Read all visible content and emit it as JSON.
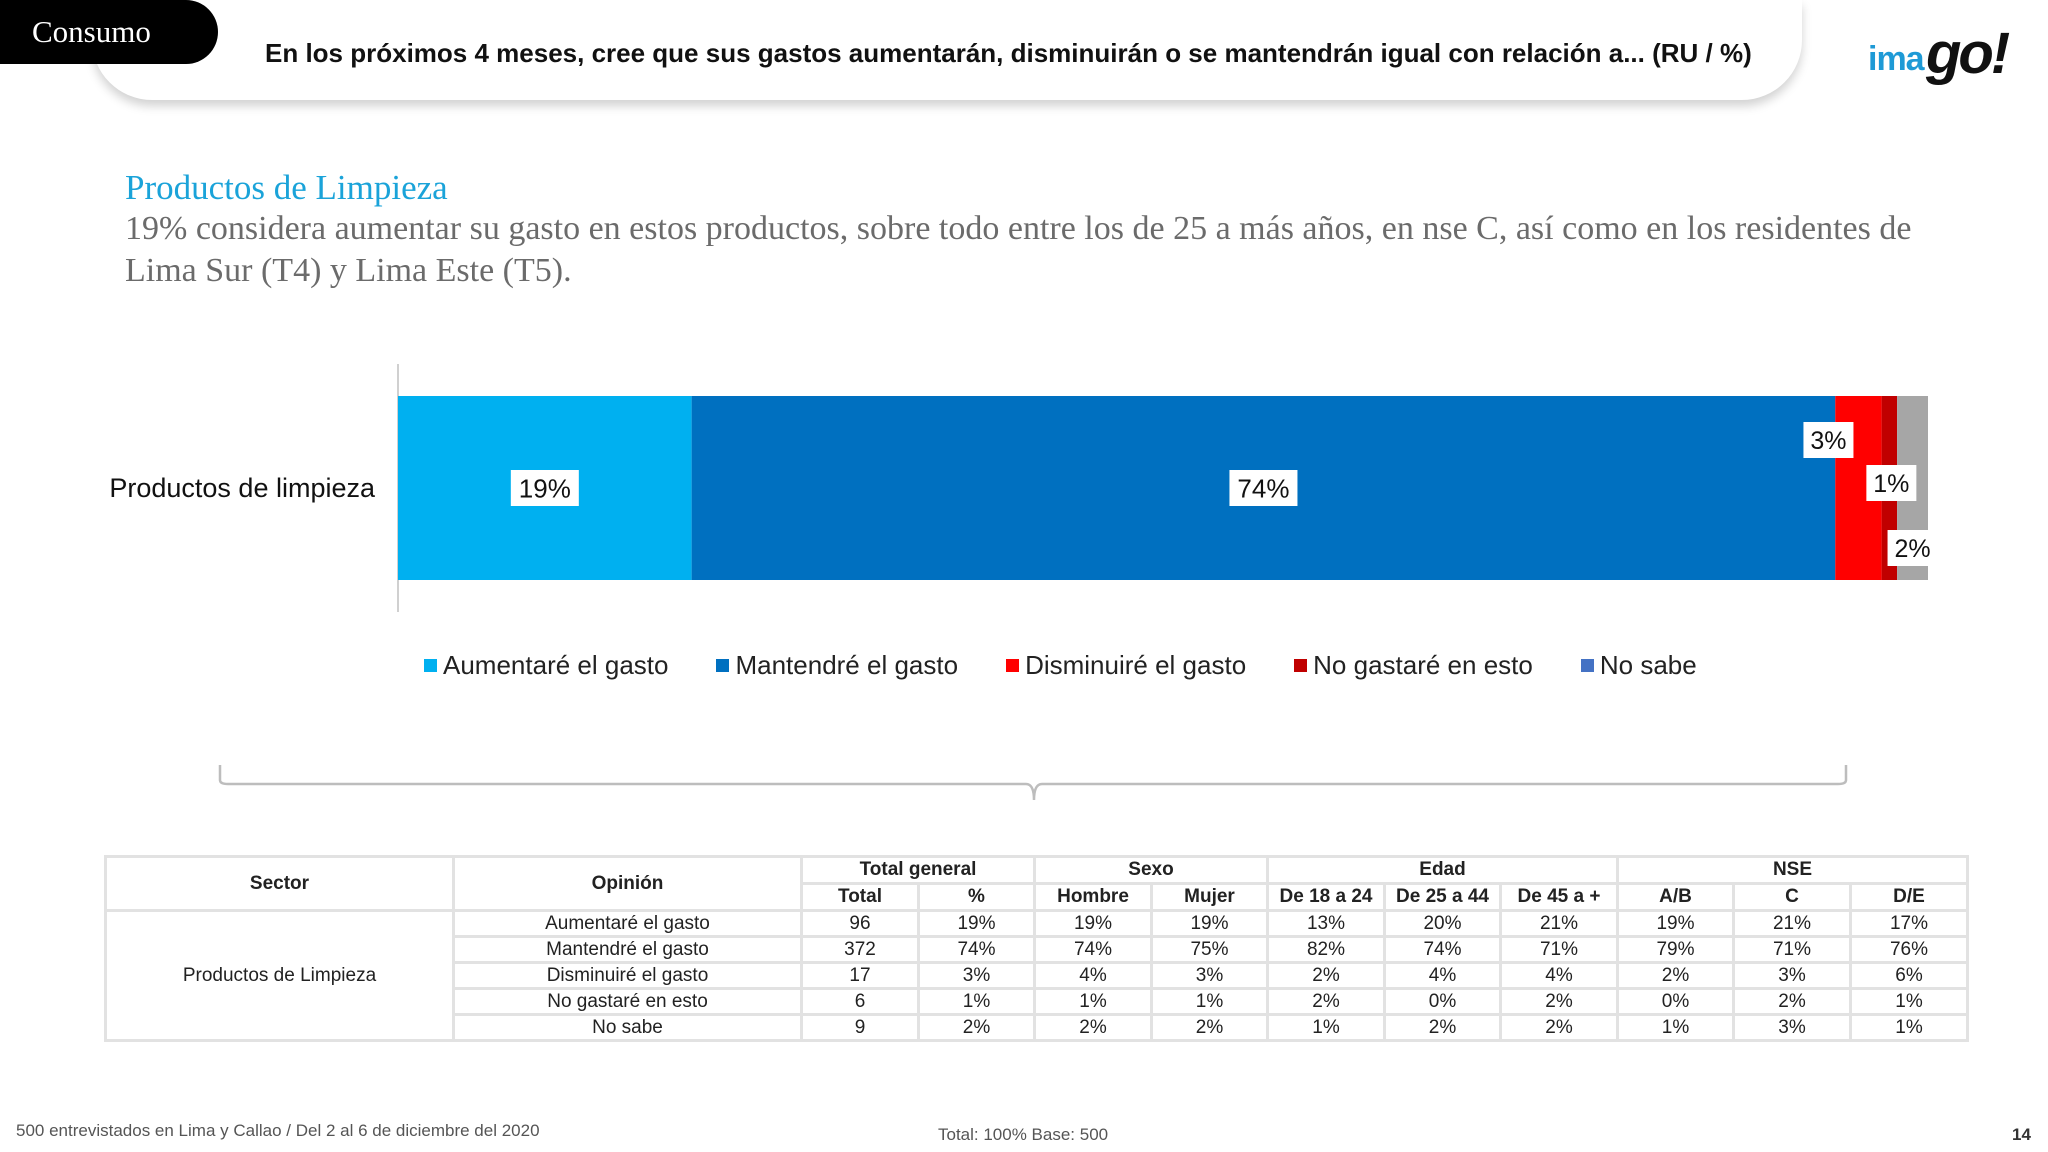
{
  "header": {
    "tag": "Consumo",
    "question": "En los próximos 4 meses, cree que sus gastos aumentarán, disminuirán o se mantendrán igual con relación a...  (RU  /  %)",
    "logo_ima": "ima",
    "logo_go": "go!"
  },
  "subtitle": {
    "head": "Productos de Limpieza",
    "body": "19% considera aumentar su gasto en estos productos, sobre todo entre los de 25 a más años, en nse C, así como en los residentes de Lima Sur (T4) y Lima Este (T5)."
  },
  "chart_data": {
    "type": "bar",
    "orientation": "horizontal",
    "stacked": true,
    "categories": [
      "Productos de limpieza"
    ],
    "series": [
      {
        "name": "Aumentaré el gasto",
        "values": [
          19
        ],
        "label": "19%",
        "color": "#00b0f0"
      },
      {
        "name": "Mantendré el gasto",
        "values": [
          74
        ],
        "label": "74%",
        "color": "#0070c0"
      },
      {
        "name": "Disminuiré el gasto",
        "values": [
          3
        ],
        "label": "3%",
        "color": "#ff0000"
      },
      {
        "name": "No gastaré en esto",
        "values": [
          1
        ],
        "label": "1%",
        "color": "#c00000"
      },
      {
        "name": "No sabe",
        "values": [
          2
        ],
        "label": "2%",
        "color": "#a6a6a6"
      }
    ],
    "legend_swatches": [
      "#00b0f0",
      "#0070c0",
      "#ff0000",
      "#c00000",
      "#4472c4"
    ],
    "xlim": [
      0,
      99
    ],
    "legend_position": "bottom",
    "grid": false
  },
  "table": {
    "headers": {
      "sector": "Sector",
      "opinion": "Opinión",
      "groups": [
        {
          "label": "Total general",
          "subs": [
            "Total",
            "%"
          ]
        },
        {
          "label": "Sexo",
          "subs": [
            "Hombre",
            "Mujer"
          ]
        },
        {
          "label": "Edad",
          "subs": [
            "De 18 a 24",
            "De 25 a 44",
            "De 45 a +"
          ]
        },
        {
          "label": "NSE",
          "subs": [
            "A/B",
            "C",
            "D/E"
          ]
        }
      ]
    },
    "sector": "Productos de Limpieza",
    "rows": [
      {
        "opinion": "Aumentaré el gasto",
        "cells": [
          "96",
          "19%",
          "19%",
          "19%",
          "13%",
          "20%",
          "21%",
          "19%",
          "21%",
          "17%"
        ]
      },
      {
        "opinion": "Mantendré el gasto",
        "cells": [
          "372",
          "74%",
          "74%",
          "75%",
          "82%",
          "74%",
          "71%",
          "79%",
          "71%",
          "76%"
        ]
      },
      {
        "opinion": "Disminuiré el gasto",
        "cells": [
          "17",
          "3%",
          "4%",
          "3%",
          "2%",
          "4%",
          "4%",
          "2%",
          "3%",
          "6%"
        ]
      },
      {
        "opinion": "No gastaré en esto",
        "cells": [
          "6",
          "1%",
          "1%",
          "1%",
          "2%",
          "0%",
          "2%",
          "0%",
          "2%",
          "1%"
        ]
      },
      {
        "opinion": "No sabe",
        "cells": [
          "9",
          "2%",
          "2%",
          "2%",
          "1%",
          "2%",
          "2%",
          "1%",
          "3%",
          "1%"
        ]
      }
    ]
  },
  "footer": {
    "left": "500 entrevistados en Lima y Callao   /   Del 2 al 6 de diciembre del 2020",
    "mid": "Total: 100%   Base: 500",
    "page": "14"
  }
}
